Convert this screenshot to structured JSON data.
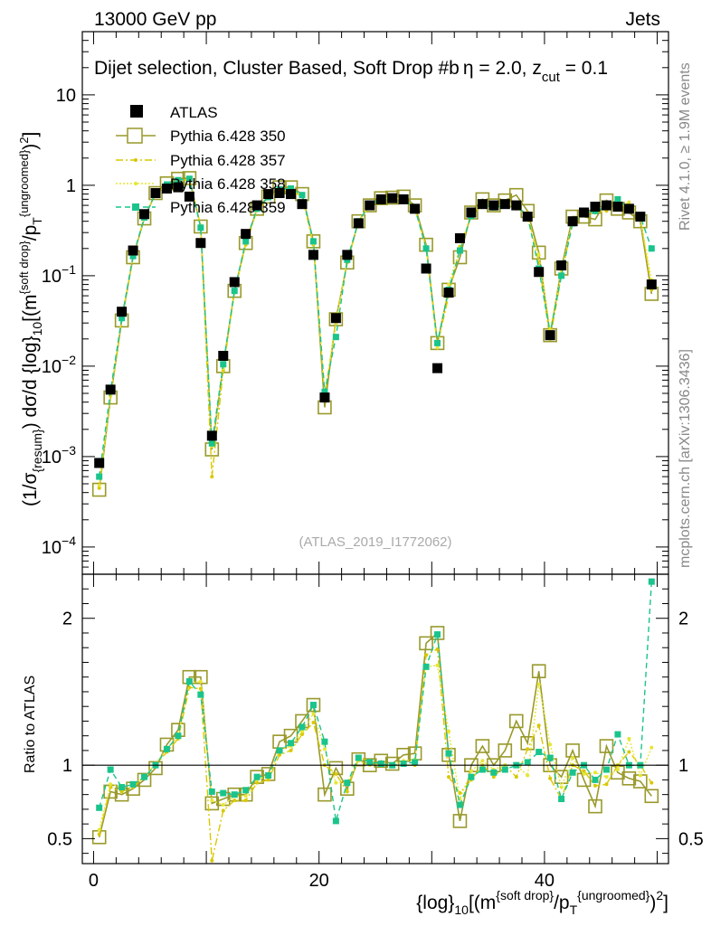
{
  "header": {
    "left": "13000 GeV pp",
    "right": "Jets"
  },
  "side_labels": {
    "rivet": "Rivet 4.1.0, ≥ 1.9M events",
    "mcplots": "mcplots.cern.ch [arXiv:1306.3436]"
  },
  "watermark": "(ATLAS_2019_I1772062)",
  "chart_data": {
    "type": "scatter",
    "title": "Dijet selection, Cluster Based, Soft Drop #b; η = 2.0, z_cut = 0.1",
    "title_main": "Dijet selection, Cluster Based, Soft Drop #b",
    "title_eta": "η = 2.0, z",
    "title_cut_sub": "cut",
    "title_tail": " = 0.1",
    "xlabel": "{log}_10[(m^{soft drop}/p_T^{ungroomed})^2]",
    "xlabel_parts": {
      "a": "{log}",
      "b": "10",
      "c": "[(m",
      "d": "{soft drop}",
      "e": "/p",
      "f": "T",
      "g": "{ungroomed}",
      "h": ")",
      "i": "2",
      "j": "]"
    },
    "ylabel": "(1/σ_{resum}) dσ/d {log}_10[(m^{soft drop}/p_T^{ungroomed})^2]",
    "ylabel_parts": {
      "a": "(1/σ",
      "b": "{resum}",
      "c": ") dσ/d {log}",
      "d": "10",
      "e": "[(m",
      "f": "{soft drop}",
      "g": "/p",
      "h": "T",
      "i": "{ungroomed}",
      "j": ")",
      "k": "2",
      "l": "]"
    },
    "ratio_ylabel": "Ratio to ATLAS",
    "xlim": [
      -1,
      51
    ],
    "ylim": [
      5e-05,
      50
    ],
    "yscale": "log",
    "ratio_ylim": [
      0.33,
      2.3
    ],
    "x_ticks": [
      0,
      20,
      40
    ],
    "x_tick_labels": [
      "0",
      "20",
      "40"
    ],
    "y_ticks": [
      0.0001,
      0.001,
      0.01,
      0.1,
      1,
      10
    ],
    "y_tick_labels": [
      {
        "base": "10",
        "exp": "−4"
      },
      {
        "base": "10",
        "exp": "−3"
      },
      {
        "base": "10",
        "exp": "−2"
      },
      {
        "base": "10",
        "exp": "−1"
      },
      {
        "base": "1",
        "exp": ""
      },
      {
        "base": "10",
        "exp": ""
      }
    ],
    "ratio_ticks": [
      0.5,
      1,
      2
    ],
    "ratio_tick_labels": [
      "0.5",
      "1",
      "2"
    ],
    "x": [
      0.5,
      1.5,
      2.5,
      3.5,
      4.5,
      5.5,
      6.5,
      7.5,
      8.5,
      9.5,
      10.5,
      11.5,
      12.5,
      13.5,
      14.5,
      15.5,
      16.5,
      17.5,
      18.5,
      19.5,
      20.5,
      21.5,
      22.5,
      23.5,
      24.5,
      25.5,
      26.5,
      27.5,
      28.5,
      29.5,
      30.5,
      31.5,
      32.5,
      33.5,
      34.5,
      35.5,
      36.5,
      37.5,
      38.5,
      39.5,
      40.5,
      41.5,
      42.5,
      43.5,
      44.5,
      45.5,
      46.5,
      47.5,
      48.5,
      49.5
    ],
    "legend": [
      "ATLAS",
      "Pythia 6.428 350",
      "Pythia 6.428 357",
      "Pythia 6.428 358",
      "Pythia 6.428 359"
    ],
    "series": [
      {
        "name": "ATLAS",
        "color": "#000000",
        "style": "filled-square",
        "values": [
          0.00085,
          0.0055,
          0.04,
          0.19,
          0.48,
          0.82,
          0.92,
          0.95,
          0.75,
          0.23,
          0.0017,
          0.013,
          0.085,
          0.29,
          0.6,
          0.8,
          0.82,
          0.8,
          0.62,
          0.17,
          0.0045,
          0.034,
          0.17,
          0.38,
          0.6,
          0.7,
          0.72,
          0.7,
          0.55,
          0.12,
          0.0095,
          0.065,
          0.26,
          0.5,
          0.62,
          0.6,
          0.62,
          0.6,
          0.45,
          0.11,
          0.022,
          0.13,
          0.4,
          0.5,
          0.58,
          0.6,
          0.58,
          0.55,
          0.45,
          0.08
        ]
      },
      {
        "name": "Pythia 6.428 350",
        "color": "#99992b",
        "style": "open-square",
        "values": [
          0.00043,
          0.0045,
          0.032,
          0.16,
          0.43,
          0.82,
          1.05,
          1.18,
          1.2,
          0.35,
          0.0012,
          0.01,
          0.068,
          0.23,
          0.55,
          0.75,
          0.95,
          0.95,
          0.8,
          0.24,
          0.0035,
          0.033,
          0.14,
          0.4,
          0.6,
          0.72,
          0.73,
          0.75,
          0.6,
          0.22,
          0.018,
          0.07,
          0.16,
          0.5,
          0.7,
          0.6,
          0.68,
          0.78,
          0.52,
          0.18,
          0.022,
          0.12,
          0.45,
          0.45,
          0.42,
          0.68,
          0.55,
          0.5,
          0.4,
          0.063
        ]
      },
      {
        "name": "Pythia 6.428 357",
        "color": "#d9c800",
        "style": "dashdot",
        "values": [
          0.00045,
          0.0047,
          0.033,
          0.16,
          0.44,
          0.82,
          1.0,
          1.12,
          1.15,
          0.35,
          0.0006,
          0.009,
          0.065,
          0.22,
          0.53,
          0.72,
          0.88,
          0.88,
          0.75,
          0.22,
          0.0045,
          0.032,
          0.14,
          0.4,
          0.62,
          0.7,
          0.72,
          0.7,
          0.55,
          0.21,
          0.017,
          0.06,
          0.21,
          0.45,
          0.62,
          0.55,
          0.62,
          0.55,
          0.5,
          0.14,
          0.02,
          0.1,
          0.4,
          0.48,
          0.5,
          0.52,
          0.58,
          0.6,
          0.45,
          0.07
        ]
      },
      {
        "name": "Pythia 6.428 358",
        "color": "#e6e633",
        "style": "dotted",
        "values": [
          0.00048,
          0.0048,
          0.034,
          0.165,
          0.44,
          0.83,
          1.02,
          1.14,
          1.17,
          0.36,
          0.0013,
          0.0095,
          0.067,
          0.23,
          0.54,
          0.74,
          0.9,
          0.9,
          0.76,
          0.23,
          0.005,
          0.03,
          0.15,
          0.39,
          0.6,
          0.71,
          0.72,
          0.72,
          0.57,
          0.2,
          0.016,
          0.08,
          0.2,
          0.48,
          0.64,
          0.58,
          0.62,
          0.6,
          0.42,
          0.17,
          0.025,
          0.11,
          0.42,
          0.47,
          0.55,
          0.55,
          0.56,
          0.65,
          0.42,
          0.09
        ]
      },
      {
        "name": "Pythia 6.428 359",
        "color": "#1ac48c",
        "style": "dashed-marker",
        "values": [
          0.0006,
          0.0053,
          0.034,
          0.165,
          0.44,
          0.82,
          1.02,
          1.14,
          1.18,
          0.34,
          0.0014,
          0.0105,
          0.068,
          0.24,
          0.55,
          0.74,
          0.9,
          0.92,
          0.78,
          0.24,
          0.0052,
          0.021,
          0.15,
          0.4,
          0.61,
          0.71,
          0.72,
          0.71,
          0.56,
          0.2,
          0.018,
          0.07,
          0.19,
          0.46,
          0.6,
          0.57,
          0.6,
          0.6,
          0.46,
          0.12,
          0.023,
          0.1,
          0.38,
          0.5,
          0.52,
          0.58,
          0.7,
          0.55,
          0.45,
          0.2
        ]
      }
    ],
    "ratio_series": [
      {
        "name": "Pythia 6.428 350",
        "values": [
          0.51,
          0.82,
          0.8,
          0.84,
          0.9,
          0.98,
          1.14,
          1.24,
          1.6,
          1.6,
          0.74,
          0.77,
          0.8,
          0.8,
          0.92,
          0.94,
          1.16,
          1.2,
          1.3,
          1.41,
          0.8,
          0.98,
          0.84,
          1.04,
          1.0,
          1.03,
          1.01,
          1.07,
          1.08,
          1.83,
          1.9,
          1.07,
          0.62,
          1.0,
          1.13,
          1.0,
          1.1,
          1.3,
          1.15,
          1.64,
          1.0,
          0.92,
          1.1,
          0.9,
          0.72,
          1.13,
          0.95,
          0.91,
          0.89,
          0.79
        ]
      },
      {
        "name": "Pythia 6.428 357",
        "values": [
          0.53,
          0.85,
          0.82,
          0.85,
          0.92,
          1.0,
          1.09,
          1.18,
          1.53,
          1.52,
          0.35,
          0.69,
          0.76,
          0.76,
          0.88,
          0.9,
          1.07,
          1.1,
          1.21,
          1.29,
          1.0,
          0.94,
          0.82,
          1.05,
          1.03,
          1.0,
          1.0,
          1.0,
          1.0,
          1.75,
          1.79,
          0.92,
          0.81,
          0.9,
          1.0,
          0.92,
          1.0,
          0.92,
          1.11,
          1.27,
          0.91,
          0.77,
          1.0,
          0.96,
          0.86,
          0.87,
          1.0,
          1.09,
          1.0,
          0.88
        ]
      },
      {
        "name": "Pythia 6.428 358",
        "values": [
          0.56,
          0.87,
          0.85,
          0.87,
          0.92,
          1.01,
          1.11,
          1.2,
          1.56,
          1.57,
          0.76,
          0.73,
          0.79,
          0.79,
          0.9,
          0.93,
          1.1,
          1.13,
          1.23,
          1.35,
          1.11,
          0.88,
          0.88,
          1.03,
          1.0,
          1.01,
          1.0,
          1.03,
          1.04,
          1.67,
          1.68,
          1.23,
          0.77,
          0.96,
          1.03,
          0.97,
          1.0,
          1.0,
          0.93,
          1.55,
          1.14,
          0.85,
          1.05,
          0.94,
          0.95,
          0.92,
          0.97,
          1.18,
          0.93,
          1.12
        ]
      },
      {
        "name": "Pythia 6.428 359",
        "values": [
          0.71,
          0.97,
          0.85,
          0.87,
          0.92,
          1.0,
          1.11,
          1.2,
          1.57,
          1.48,
          0.82,
          0.81,
          0.8,
          0.83,
          0.92,
          0.93,
          1.1,
          1.15,
          1.26,
          1.41,
          1.16,
          0.62,
          0.88,
          1.05,
          1.02,
          1.01,
          1.0,
          1.01,
          1.02,
          1.67,
          1.89,
          1.08,
          0.73,
          0.92,
          0.97,
          0.95,
          0.97,
          1.0,
          1.02,
          1.09,
          1.05,
          0.77,
          0.95,
          1.0,
          0.9,
          0.97,
          1.21,
          1.0,
          1.0,
          2.25
        ]
      }
    ]
  }
}
